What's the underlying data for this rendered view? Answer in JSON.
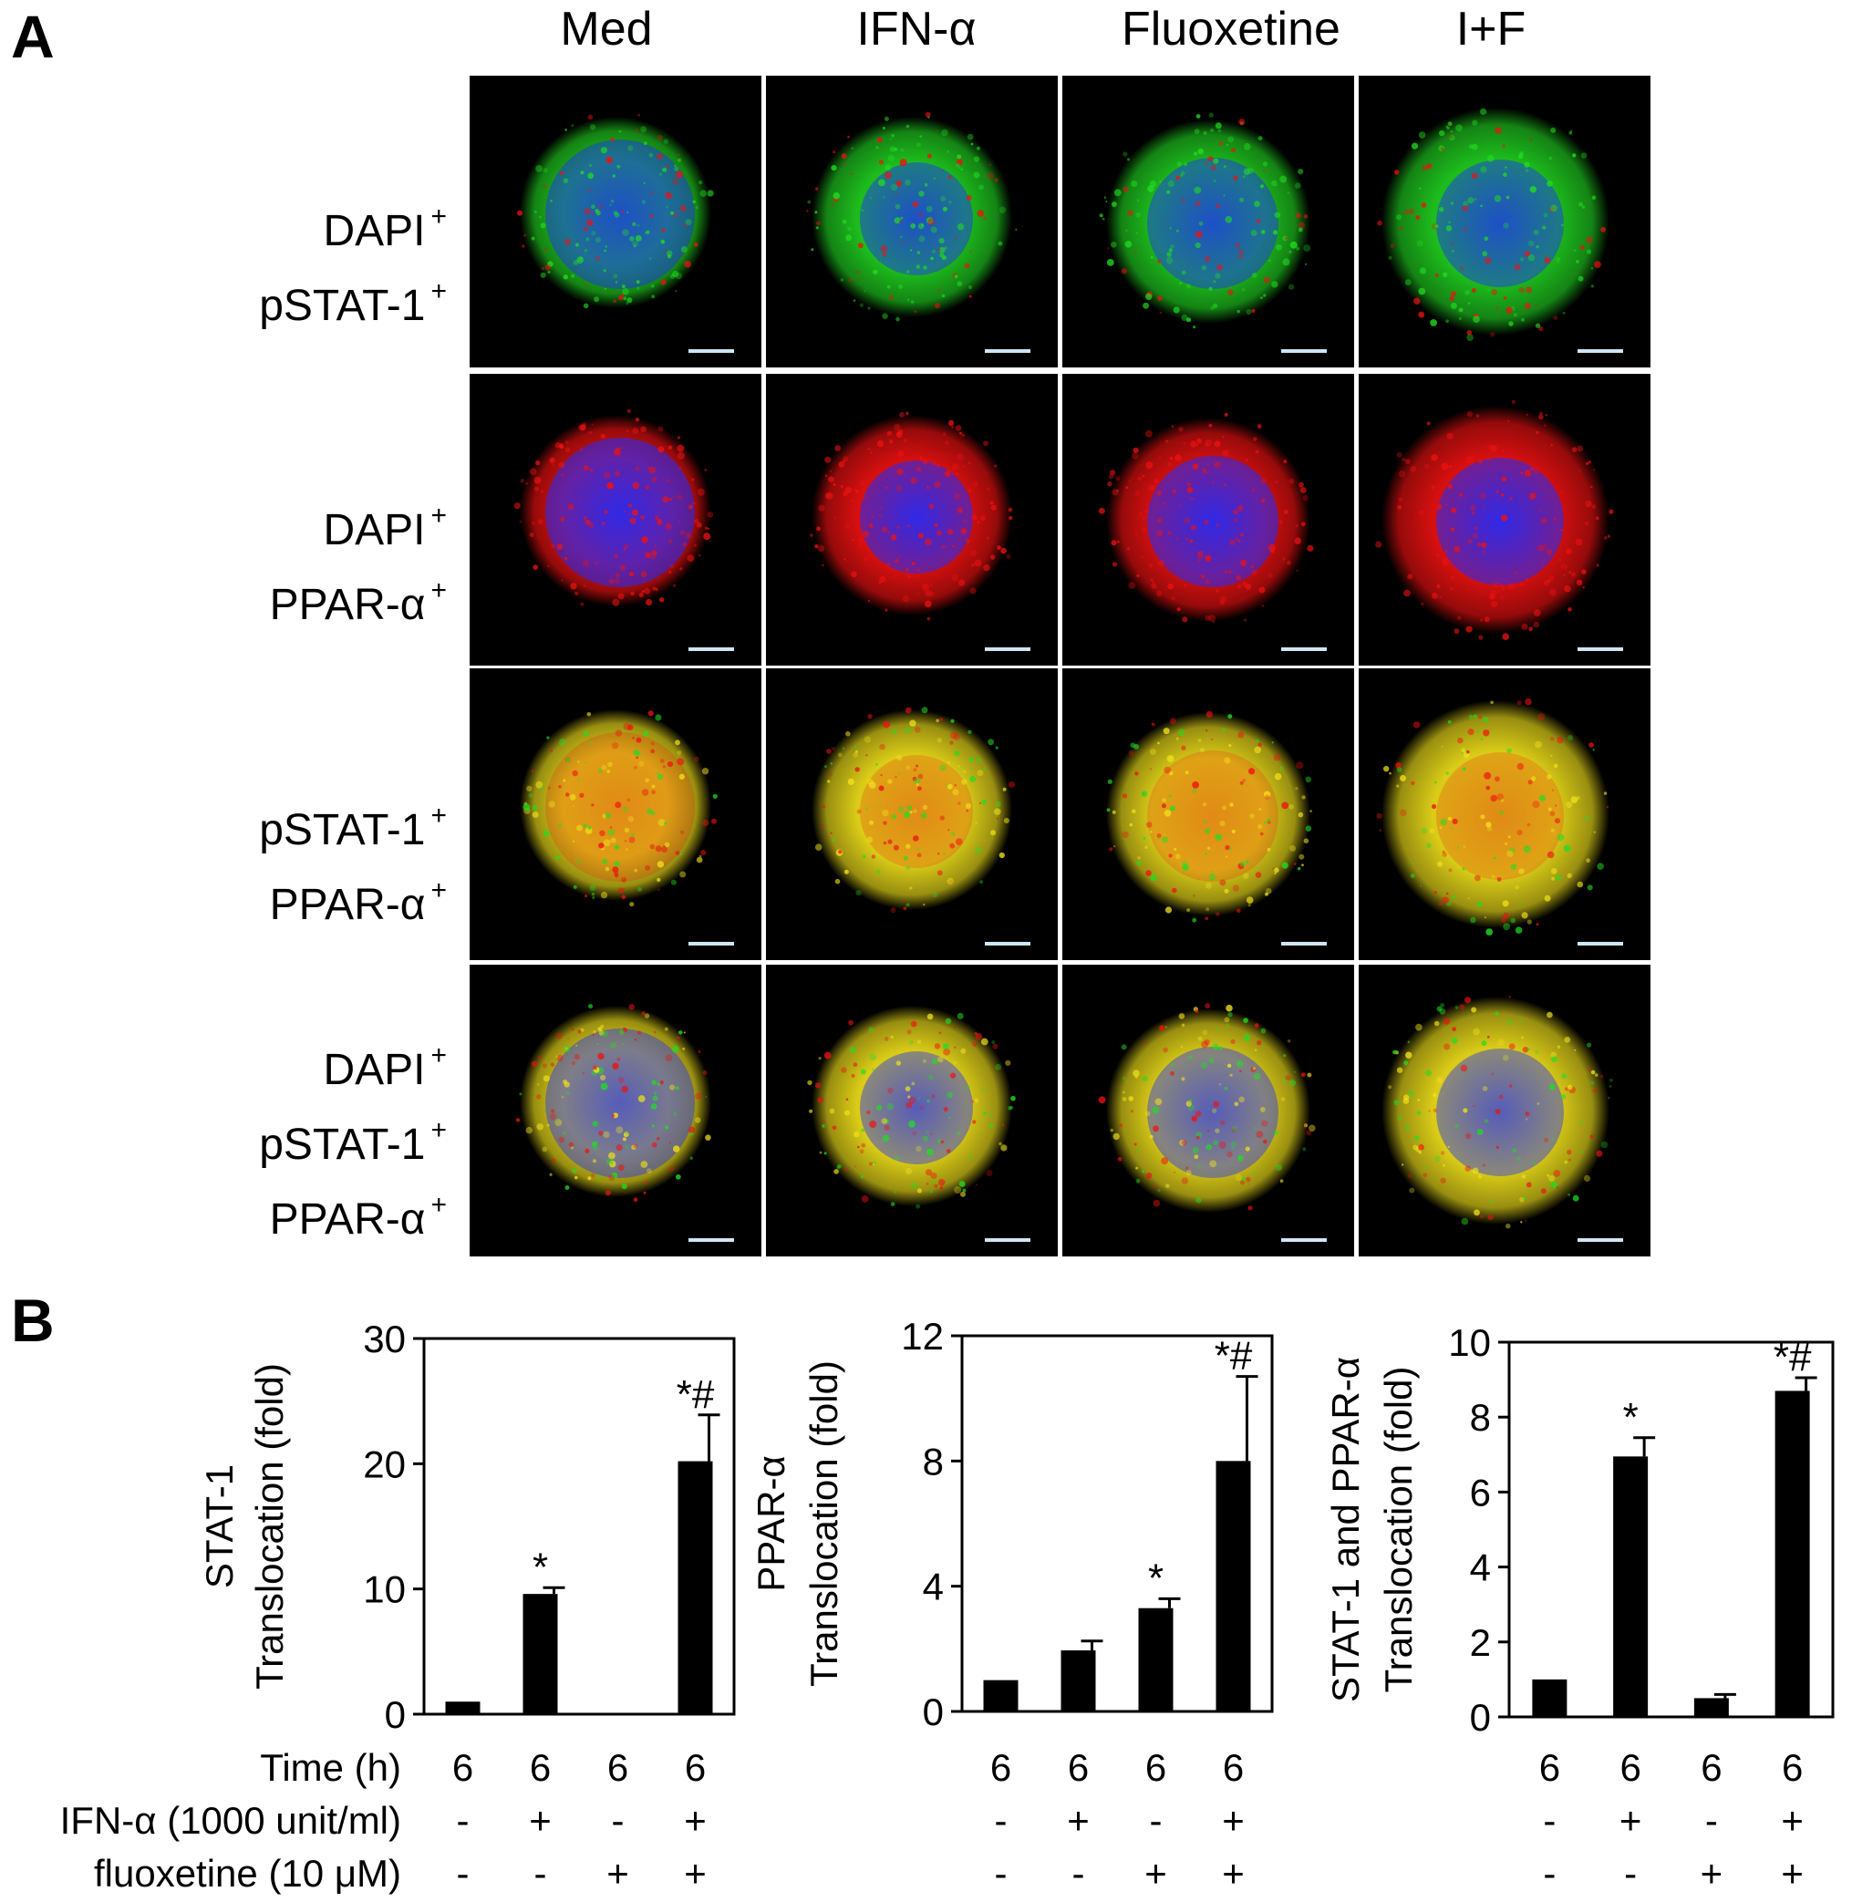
{
  "figure": {
    "panel_a_letter": "A",
    "panel_b_letter": "B",
    "columns": [
      "Med",
      "IFN-α",
      "Fluoxetine",
      "I+F"
    ],
    "rows": [
      {
        "lines": [
          "DAPI",
          "pSTAT-1"
        ]
      },
      {
        "lines": [
          "DAPI",
          "PPAR-α"
        ]
      },
      {
        "lines": [
          "pSTAT-1",
          "PPAR-α"
        ]
      },
      {
        "lines": [
          "DAPI",
          "pSTAT-1",
          "PPAR-α"
        ]
      }
    ],
    "plus_mark": "+",
    "image_channels": {
      "dapi": "#1e2cff",
      "pstat1": "#22dd22",
      "ppar": "#ee1111",
      "merge": "#f2e21a"
    }
  },
  "table": {
    "row_labels": [
      "Time (h)",
      "IFN-α (1000 unit/ml)",
      "fluoxetine (10 μM)"
    ],
    "time": [
      "6",
      "6",
      "6",
      "6"
    ],
    "ifn": [
      "-",
      "+",
      "-",
      "+"
    ],
    "fluox": [
      "-",
      "-",
      "+",
      "+"
    ]
  },
  "chart_data": [
    {
      "type": "bar",
      "ylabel_lines": [
        "STAT-1",
        "Translocation (fold)"
      ],
      "ylim": [
        0,
        30
      ],
      "yticks": [
        "0",
        "10",
        "20",
        "30"
      ],
      "values": [
        1.0,
        9.6,
        0.1,
        20.2
      ],
      "errors": [
        0.0,
        0.5,
        0.0,
        3.7
      ],
      "annotations": [
        "",
        "*",
        "",
        "*#"
      ]
    },
    {
      "type": "bar",
      "ylabel_lines": [
        "PPAR-α",
        "Translocation (fold)"
      ],
      "ylim": [
        0,
        12
      ],
      "yticks": [
        "0",
        "4",
        "8",
        "12"
      ],
      "values": [
        1.0,
        1.95,
        3.3,
        8.0
      ],
      "errors": [
        0.0,
        0.3,
        0.3,
        2.7
      ],
      "annotations": [
        "",
        "",
        "*",
        "*#"
      ]
    },
    {
      "type": "bar",
      "ylabel_lines": [
        "STAT-1 and PPAR-α",
        "Translocation (fold)"
      ],
      "ylim": [
        0,
        10
      ],
      "yticks": [
        "0",
        "2",
        "4",
        "6",
        "8",
        "10"
      ],
      "values": [
        1.0,
        6.95,
        0.5,
        8.7
      ],
      "errors": [
        0.0,
        0.5,
        0.1,
        0.35
      ],
      "annotations": [
        "",
        "*",
        "",
        "*#"
      ]
    }
  ]
}
